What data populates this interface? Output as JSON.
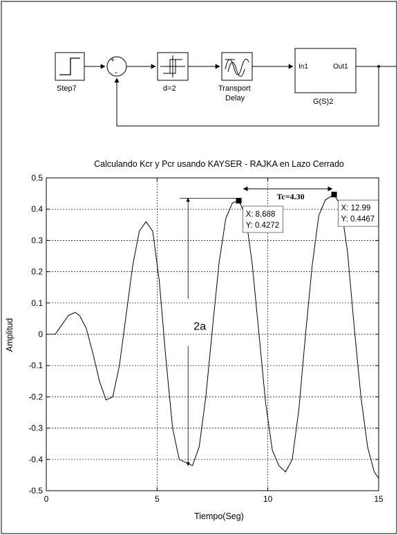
{
  "block_diagram": {
    "blocks": {
      "step": "Step7",
      "relay": "d=2",
      "delay_line1": "Transport",
      "delay_line2": "Delay",
      "plant": "G(S)2",
      "port_in": "In1",
      "port_out": "Out1"
    },
    "summing_signs": {
      "plus": "+",
      "minus": "-"
    }
  },
  "chart_data": {
    "type": "line",
    "title": "Calculando Kcr y Pcr usando KAYSER - RAJKA en Lazo Cerrado",
    "xlabel": "Tiempo(Seg)",
    "ylabel": "Amplitud",
    "xlim": [
      0,
      15
    ],
    "ylim": [
      -0.5,
      0.5
    ],
    "grid": true,
    "xticks": [
      "0",
      "5",
      "10",
      "15"
    ],
    "yticks": [
      "0.5",
      "0.4",
      "0.3",
      "0.2",
      "0.1",
      "0",
      "-0.1",
      "-0.2",
      "-0.3",
      "-0.4",
      "-0.5"
    ],
    "series": [
      {
        "x": [
          0,
          0.4,
          0.7,
          1.0,
          1.3,
          1.5,
          1.8,
          2.1,
          2.4,
          2.7,
          3.0,
          3.3,
          3.6,
          3.9,
          4.2,
          4.5,
          4.8,
          5.1,
          5.4,
          5.7,
          6.0,
          6.3,
          6.6,
          6.9,
          7.2,
          7.5,
          7.8,
          8.1,
          8.4,
          8.688,
          9.0,
          9.3,
          9.6,
          9.9,
          10.2,
          10.5,
          10.8,
          11.1,
          11.4,
          11.7,
          12.0,
          12.3,
          12.6,
          12.99,
          13.3,
          13.6,
          13.9,
          14.2,
          14.5,
          14.8,
          15.0
        ],
        "y": [
          0,
          0.0,
          0.03,
          0.06,
          0.07,
          0.06,
          0.02,
          -0.06,
          -0.15,
          -0.21,
          -0.2,
          -0.1,
          0.06,
          0.22,
          0.33,
          0.36,
          0.33,
          0.17,
          -0.08,
          -0.3,
          -0.4,
          -0.41,
          -0.42,
          -0.36,
          -0.2,
          0.02,
          0.23,
          0.37,
          0.42,
          0.4272,
          0.38,
          0.22,
          0.0,
          -0.22,
          -0.37,
          -0.42,
          -0.44,
          -0.4,
          -0.24,
          0.0,
          0.22,
          0.38,
          0.43,
          0.4467,
          0.41,
          0.26,
          0.02,
          -0.2,
          -0.36,
          -0.44,
          -0.46
        ]
      }
    ],
    "datatips": [
      {
        "x": 8.688,
        "y": 0.4272,
        "line1": "X: 8.688",
        "line2": "Y: 0.4272"
      },
      {
        "x": 12.99,
        "y": 0.4467,
        "line1": "X: 12.99",
        "line2": "Y: 0.4467"
      }
    ],
    "annotations": {
      "amplitude_label": "2a",
      "period_label": "Tc=4.30",
      "amplitude_arrow": {
        "x": 6.4,
        "y_top": 0.435,
        "y_bottom": -0.42,
        "label_y": 0.025
      },
      "period_arrow": {
        "x_start": 8.9,
        "x_end": 12.9,
        "y": 0.465
      }
    }
  }
}
